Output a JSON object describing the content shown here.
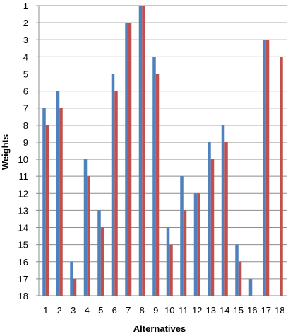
{
  "chart_data": {
    "type": "bar",
    "title": "",
    "xlabel": "Alternatives",
    "ylabel": "Weights",
    "categories": [
      "1",
      "2",
      "3",
      "4",
      "5",
      "6",
      "7",
      "8",
      "9",
      "10",
      "11",
      "12",
      "13",
      "14",
      "15",
      "16",
      "17",
      "18"
    ],
    "y_ticks": [
      "1",
      "2",
      "3",
      "4",
      "5",
      "6",
      "7",
      "8",
      "9",
      "10",
      "11",
      "12",
      "13",
      "14",
      "15",
      "16",
      "17",
      "18"
    ],
    "ylim": [
      18,
      1
    ],
    "y_inverted": true,
    "grid": "horizontal",
    "legend": "none",
    "series": [
      {
        "color": "#4F81BD",
        "values": [
          7,
          6,
          16,
          10,
          13,
          5,
          2,
          1,
          4,
          14,
          11,
          12,
          9,
          8,
          15,
          17,
          3,
          18
        ]
      },
      {
        "color": "#C0504D",
        "values": [
          8,
          7,
          17,
          11,
          14,
          6,
          2,
          1,
          5,
          15,
          13,
          12,
          10,
          9,
          16,
          18,
          3,
          4
        ]
      }
    ]
  }
}
